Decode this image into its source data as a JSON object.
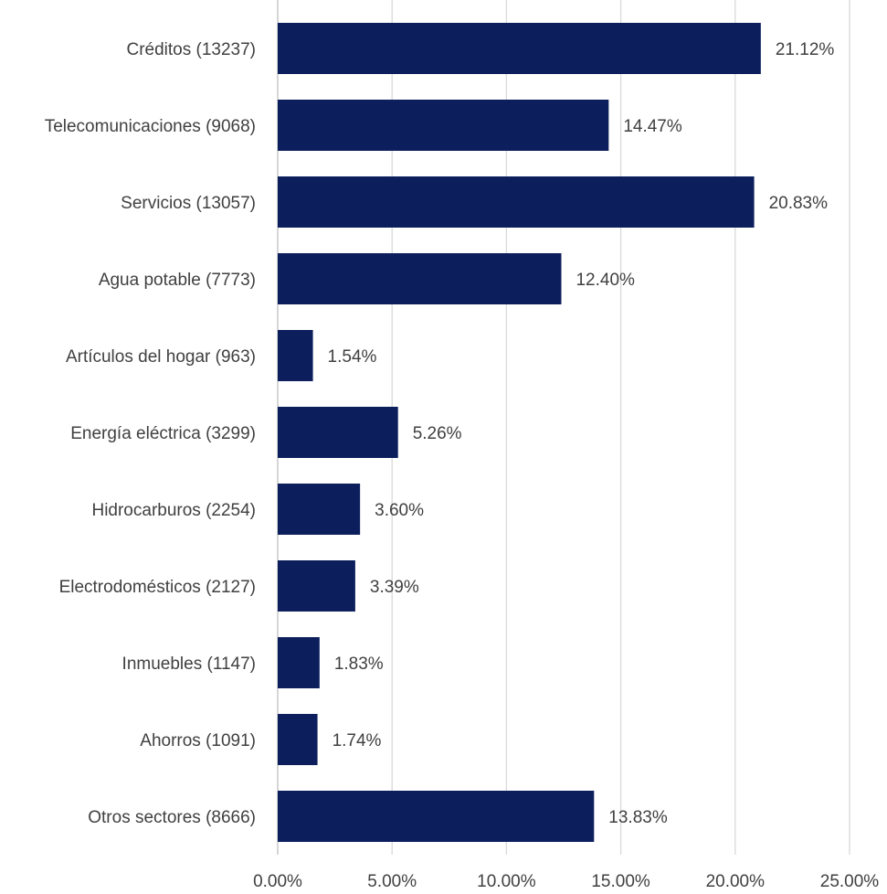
{
  "chart_data": {
    "type": "bar",
    "orientation": "horizontal",
    "title": "",
    "xlabel": "",
    "ylabel": "",
    "categories": [
      "Créditos (13237)",
      "Telecomunicaciones (9068)",
      "Servicios (13057)",
      "Agua potable (7773)",
      "Artículos del hogar (963)",
      "Energía eléctrica (3299)",
      "Hidrocarburos (2254)",
      "Electrodomésticos (2127)",
      "Inmuebles (1147)",
      "Ahorros (1091)",
      "Otros sectores (8666)"
    ],
    "values": [
      21.12,
      14.47,
      20.83,
      12.4,
      1.54,
      5.26,
      3.6,
      3.39,
      1.83,
      1.74,
      13.83
    ],
    "data_labels": [
      "21.12%",
      "14.47%",
      "20.83%",
      "12.40%",
      "1.54%",
      "5.26%",
      "3.60%",
      "3.39%",
      "1.83%",
      "1.74%",
      "13.83%"
    ],
    "xlim": [
      0,
      25
    ],
    "x_ticks": [
      0,
      5,
      10,
      15,
      20,
      25
    ],
    "x_tick_labels": [
      "0.00%",
      "5.00%",
      "10.00%",
      "15.00%",
      "20.00%",
      "25.00%"
    ],
    "grid": "vertical",
    "legend": "none",
    "bar_color": "#0c1f5c"
  }
}
